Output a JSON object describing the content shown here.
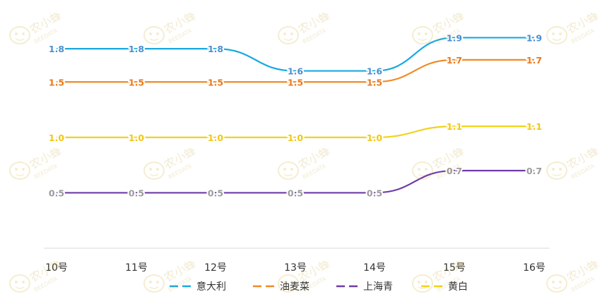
{
  "chart_data": {
    "type": "line",
    "categories": [
      "10号",
      "11号",
      "12号",
      "13号",
      "14号",
      "15号",
      "16号"
    ],
    "series": [
      {
        "name": "意大利",
        "color": "#1aa9e0",
        "label_color": "#4a8fcf",
        "values": [
          1.8,
          1.8,
          1.8,
          1.6,
          1.6,
          1.9,
          1.9
        ]
      },
      {
        "name": "油麦菜",
        "color": "#f08a24",
        "label_color": "#e8781b",
        "values": [
          1.5,
          1.5,
          1.5,
          1.5,
          1.5,
          1.7,
          1.7
        ]
      },
      {
        "name": "上海青",
        "color": "#6f3ba8",
        "label_color": "#9b9b9b",
        "values": [
          0.5,
          0.5,
          0.5,
          0.5,
          0.5,
          0.7,
          0.7
        ]
      },
      {
        "name": "黄白",
        "color": "#f2d21a",
        "label_color": "#f2c80f",
        "values": [
          1.0,
          1.0,
          1.0,
          1.0,
          1.0,
          1.1,
          1.1
        ]
      }
    ],
    "value_labels": [
      [
        "1.8",
        "1.8",
        "1.8",
        "1.6",
        "1.6",
        "1.9",
        "1.9"
      ],
      [
        "1.5",
        "1.5",
        "1.5",
        "1.5",
        "1.5",
        "1.7",
        "1.7"
      ],
      [
        "0.5",
        "0.5",
        "0.5",
        "0.5",
        "0.5",
        "0.7",
        "0.7"
      ],
      [
        "1.0",
        "1.0",
        "1.0",
        "1.0",
        "1.0",
        "1.1",
        "1.1"
      ]
    ],
    "ylim": [
      0,
      2.1
    ],
    "grid": false,
    "legend": "bottom-center",
    "title": "",
    "xlabel": "",
    "ylabel": ""
  },
  "watermark": {
    "brand": "农小蜂",
    "brand_en": "BEEDATA",
    "logo_icon": "bee-icon"
  }
}
